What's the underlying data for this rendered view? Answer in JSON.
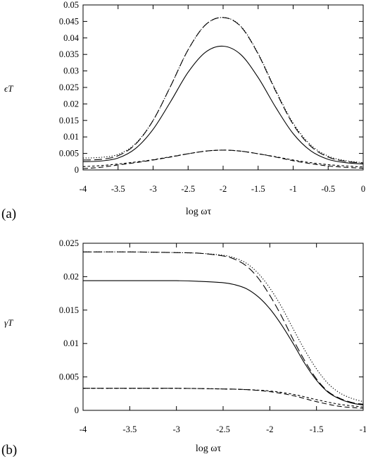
{
  "chart_data": [
    {
      "type": "line",
      "panel_label": "(a)",
      "ylabel": "ϵT",
      "xlabel": "log ωτ",
      "xlim": [
        -4,
        0
      ],
      "ylim": [
        0,
        0.05
      ],
      "xticks": [
        "-4",
        "-3.5",
        "-3",
        "-2.5",
        "-2",
        "-1.5",
        "-1",
        "-0.5",
        "0"
      ],
      "yticks": [
        "0",
        "0.005",
        "0.01",
        "0.015",
        "0.02",
        "0.025",
        "0.03",
        "0.035",
        "0.04",
        "0.045",
        "0.05"
      ],
      "grid": false,
      "series": [
        {
          "style": "solid",
          "points": [
            [
              -4,
              0.0025
            ],
            [
              -3.75,
              0.0027
            ],
            [
              -3.5,
              0.0036
            ],
            [
              -3.25,
              0.0065
            ],
            [
              -3,
              0.0123
            ],
            [
              -2.75,
              0.0207
            ],
            [
              -2.5,
              0.0296
            ],
            [
              -2.25,
              0.0357
            ],
            [
              -2,
              0.0375
            ],
            [
              -1.75,
              0.035
            ],
            [
              -1.5,
              0.028
            ],
            [
              -1.25,
              0.019
            ],
            [
              -1,
              0.011
            ],
            [
              -0.75,
              0.0058
            ],
            [
              -0.5,
              0.0032
            ],
            [
              -0.25,
              0.0022
            ],
            [
              0,
              0.0018
            ]
          ]
        },
        {
          "style": "long-dash",
          "points": [
            [
              -4,
              0.003
            ],
            [
              -3.75,
              0.0032
            ],
            [
              -3.5,
              0.0043
            ],
            [
              -3.25,
              0.0078
            ],
            [
              -3,
              0.015
            ],
            [
              -2.75,
              0.0254
            ],
            [
              -2.5,
              0.0364
            ],
            [
              -2.25,
              0.044
            ],
            [
              -2,
              0.0462
            ],
            [
              -1.75,
              0.0435
            ],
            [
              -1.5,
              0.0351
            ],
            [
              -1.25,
              0.0239
            ],
            [
              -1,
              0.0138
            ],
            [
              -0.75,
              0.0072
            ],
            [
              -0.5,
              0.0039
            ],
            [
              -0.25,
              0.0026
            ],
            [
              0,
              0.0021
            ]
          ]
        },
        {
          "style": "dotted",
          "points": [
            [
              -4,
              0.0036
            ],
            [
              -3.75,
              0.0038
            ],
            [
              -3.5,
              0.0047
            ],
            [
              -3.25,
              0.008
            ],
            [
              -3,
              0.015
            ],
            [
              -2.75,
              0.0254
            ],
            [
              -2.5,
              0.0364
            ],
            [
              -2.25,
              0.044
            ],
            [
              -2,
              0.0462
            ],
            [
              -1.75,
              0.0436
            ],
            [
              -1.5,
              0.0353
            ],
            [
              -1.25,
              0.0242
            ],
            [
              -1,
              0.0142
            ],
            [
              -0.75,
              0.0076
            ],
            [
              -0.5,
              0.0042
            ],
            [
              -0.25,
              0.0028
            ],
            [
              0,
              0.0022
            ]
          ]
        },
        {
          "style": "medium-dash",
          "points": [
            [
              -4,
              0.0004
            ],
            [
              -3.75,
              0.0008
            ],
            [
              -3.5,
              0.0015
            ],
            [
              -3.25,
              0.0022
            ],
            [
              -3,
              0.003
            ],
            [
              -2.75,
              0.0039
            ],
            [
              -2.5,
              0.0049
            ],
            [
              -2.25,
              0.0057
            ],
            [
              -2,
              0.006
            ],
            [
              -1.75,
              0.0057
            ],
            [
              -1.5,
              0.0049
            ],
            [
              -1.25,
              0.0039
            ],
            [
              -1,
              0.0028
            ],
            [
              -0.75,
              0.0019
            ],
            [
              -0.5,
              0.0012
            ],
            [
              -0.25,
              0.0008
            ],
            [
              0,
              0.0005
            ]
          ]
        },
        {
          "style": "short-dash",
          "points": [
            [
              -4,
              0.001
            ],
            [
              -3.75,
              0.0013
            ],
            [
              -3.5,
              0.0018
            ],
            [
              -3.25,
              0.0024
            ],
            [
              -3,
              0.0031
            ],
            [
              -2.75,
              0.004
            ],
            [
              -2.5,
              0.0049
            ],
            [
              -2.25,
              0.0057
            ],
            [
              -2,
              0.006
            ],
            [
              -1.75,
              0.0057
            ],
            [
              -1.5,
              0.0049
            ],
            [
              -1.25,
              0.004
            ],
            [
              -1,
              0.003
            ],
            [
              -0.75,
              0.0022
            ],
            [
              -0.5,
              0.0016
            ],
            [
              -0.25,
              0.0012
            ],
            [
              0,
              0.0009
            ]
          ]
        }
      ]
    },
    {
      "type": "line",
      "panel_label": "(b)",
      "ylabel": "γT",
      "xlabel": "log ωτ",
      "xlim": [
        -4,
        -1
      ],
      "ylim": [
        0,
        0.025
      ],
      "xticks": [
        "-4",
        "-3.5",
        "-3",
        "-2.5",
        "-2",
        "-1.5",
        "-1"
      ],
      "yticks": [
        "0",
        "0.005",
        "0.01",
        "0.015",
        "0.02",
        "0.025"
      ],
      "grid": false,
      "series": [
        {
          "style": "solid",
          "points": [
            [
              -4,
              0.0194
            ],
            [
              -3.5,
              0.0194
            ],
            [
              -3,
              0.0194
            ],
            [
              -2.75,
              0.0193
            ],
            [
              -2.5,
              0.0191
            ],
            [
              -2.375,
              0.0188
            ],
            [
              -2.25,
              0.0182
            ],
            [
              -2.125,
              0.017
            ],
            [
              -2,
              0.0152
            ],
            [
              -1.875,
              0.0128
            ],
            [
              -1.75,
              0.01
            ],
            [
              -1.625,
              0.007
            ],
            [
              -1.5,
              0.0045
            ],
            [
              -1.375,
              0.0027
            ],
            [
              -1.25,
              0.0017
            ],
            [
              -1.125,
              0.0011
            ],
            [
              -1,
              0.0008
            ]
          ]
        },
        {
          "style": "long-dash",
          "points": [
            [
              -4,
              0.0237
            ],
            [
              -3.5,
              0.0237
            ],
            [
              -3,
              0.0236
            ],
            [
              -2.75,
              0.0235
            ],
            [
              -2.5,
              0.0231
            ],
            [
              -2.375,
              0.0226
            ],
            [
              -2.25,
              0.0216
            ],
            [
              -2.125,
              0.0198
            ],
            [
              -2,
              0.0172
            ],
            [
              -1.875,
              0.0141
            ],
            [
              -1.75,
              0.0106
            ],
            [
              -1.625,
              0.0074
            ],
            [
              -1.5,
              0.0047
            ],
            [
              -1.375,
              0.0028
            ],
            [
              -1.25,
              0.0018
            ],
            [
              -1.125,
              0.0012
            ],
            [
              -1,
              0.0009
            ]
          ]
        },
        {
          "style": "dotted",
          "points": [
            [
              -4,
              0.0237
            ],
            [
              -3.5,
              0.0237
            ],
            [
              -3,
              0.0236
            ],
            [
              -2.75,
              0.0235
            ],
            [
              -2.5,
              0.0232
            ],
            [
              -2.375,
              0.0228
            ],
            [
              -2.25,
              0.022
            ],
            [
              -2.125,
              0.0205
            ],
            [
              -2,
              0.0183
            ],
            [
              -1.875,
              0.0155
            ],
            [
              -1.75,
              0.0122
            ],
            [
              -1.625,
              0.009
            ],
            [
              -1.5,
              0.0062
            ],
            [
              -1.375,
              0.004
            ],
            [
              -1.25,
              0.0026
            ],
            [
              -1.125,
              0.0018
            ],
            [
              -1,
              0.0013
            ]
          ]
        },
        {
          "style": "medium-dash",
          "points": [
            [
              -4,
              0.0033
            ],
            [
              -3.5,
              0.0033
            ],
            [
              -3,
              0.0033
            ],
            [
              -2.5,
              0.0032
            ],
            [
              -2.25,
              0.0031
            ],
            [
              -2,
              0.0028
            ],
            [
              -1.75,
              0.0022
            ],
            [
              -1.5,
              0.0013
            ],
            [
              -1.25,
              0.0006
            ],
            [
              -1,
              0.0003
            ]
          ]
        },
        {
          "style": "short-dash",
          "points": [
            [
              -4,
              0.0033
            ],
            [
              -3.5,
              0.0033
            ],
            [
              -3,
              0.0033
            ],
            [
              -2.5,
              0.0032
            ],
            [
              -2.25,
              0.0031
            ],
            [
              -2,
              0.0029
            ],
            [
              -1.75,
              0.0024
            ],
            [
              -1.5,
              0.0016
            ],
            [
              -1.25,
              0.0009
            ],
            [
              -1,
              0.0005
            ]
          ]
        }
      ]
    }
  ]
}
